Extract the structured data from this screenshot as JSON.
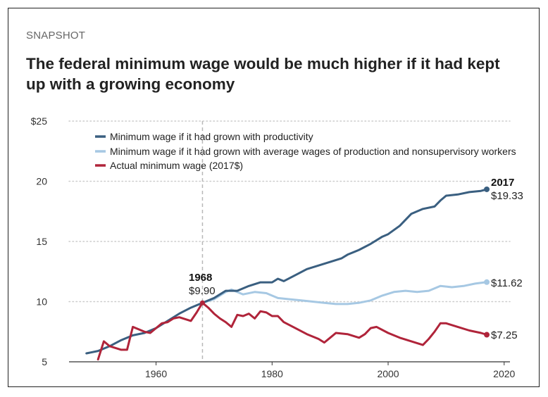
{
  "kicker": "SNAPSHOT",
  "title": "The federal minimum wage would be much higher if it had kept up with a growing economy",
  "colors": {
    "productivity": "#3a5f80",
    "avg_wages": "#a6c8e3",
    "actual": "#b0243a",
    "grid": "#cccccc",
    "marker_line": "#b8b8b8"
  },
  "chart_data": {
    "type": "line",
    "x_range": [
      1945,
      2021
    ],
    "ylim": [
      5,
      25
    ],
    "x_ticks": [
      1960,
      1980,
      2000,
      2020
    ],
    "x_tick_labels": [
      "1960",
      "1980",
      "2000",
      "2020"
    ],
    "y_ticks": [
      5,
      10,
      15,
      20,
      25
    ],
    "y_tick_labels": [
      "5",
      "10",
      "15",
      "20",
      "$25"
    ],
    "grid": "horizontal dotted",
    "legend_position": "top-left",
    "series": [
      {
        "name": "Minimum wage if it had grown with productivity",
        "color_key": "productivity",
        "x": [
          1948,
          1950,
          1952,
          1954,
          1956,
          1958,
          1960,
          1962,
          1964,
          1966,
          1968,
          1970,
          1972,
          1974,
          1976,
          1978,
          1980,
          1981,
          1982,
          1984,
          1986,
          1988,
          1990,
          1992,
          1993,
          1995,
          1997,
          1999,
          2000,
          2002,
          2004,
          2006,
          2008,
          2009,
          2010,
          2012,
          2014,
          2016,
          2017
        ],
        "y": [
          5.7,
          5.9,
          6.3,
          6.8,
          7.2,
          7.4,
          7.8,
          8.4,
          9.0,
          9.5,
          9.9,
          10.3,
          10.9,
          10.9,
          11.3,
          11.6,
          11.6,
          11.9,
          11.7,
          12.2,
          12.7,
          13.0,
          13.3,
          13.6,
          13.9,
          14.3,
          14.8,
          15.4,
          15.6,
          16.3,
          17.3,
          17.7,
          17.9,
          18.4,
          18.8,
          18.9,
          19.1,
          19.2,
          19.33
        ]
      },
      {
        "name": "Minimum wage if it had grown with average wages of production and nonsupervisory workers",
        "color_key": "avg_wages",
        "x": [
          1968,
          1970,
          1972,
          1973,
          1975,
          1977,
          1979,
          1981,
          1983,
          1985,
          1987,
          1989,
          1991,
          1993,
          1995,
          1997,
          1999,
          2001,
          2003,
          2005,
          2007,
          2009,
          2011,
          2013,
          2015,
          2017
        ],
        "y": [
          9.9,
          10.2,
          10.8,
          11.0,
          10.6,
          10.8,
          10.7,
          10.3,
          10.2,
          10.1,
          10.0,
          9.9,
          9.8,
          9.8,
          9.9,
          10.1,
          10.5,
          10.8,
          10.9,
          10.8,
          10.9,
          11.3,
          11.2,
          11.3,
          11.5,
          11.62
        ]
      },
      {
        "name": "Actual minimum wage (2017$)",
        "color_key": "actual",
        "x": [
          1950,
          1951,
          1952,
          1954,
          1955,
          1956,
          1958,
          1959,
          1961,
          1962,
          1963,
          1964,
          1966,
          1967,
          1968,
          1969,
          1970,
          1971,
          1972,
          1973,
          1974,
          1975,
          1976,
          1977,
          1978,
          1979,
          1980,
          1981,
          1982,
          1984,
          1986,
          1988,
          1989,
          1990,
          1991,
          1993,
          1995,
          1996,
          1997,
          1998,
          2000,
          2002,
          2004,
          2006,
          2007,
          2008,
          2009,
          2010,
          2012,
          2014,
          2016,
          2017
        ],
        "y": [
          5.2,
          6.7,
          6.3,
          6.0,
          6.0,
          7.9,
          7.5,
          7.4,
          8.2,
          8.3,
          8.6,
          8.7,
          8.4,
          9.1,
          9.9,
          9.5,
          9.0,
          8.6,
          8.3,
          7.9,
          8.9,
          8.8,
          9.0,
          8.6,
          9.2,
          9.1,
          8.8,
          8.8,
          8.3,
          7.8,
          7.3,
          6.9,
          6.6,
          7.0,
          7.4,
          7.3,
          7.0,
          7.3,
          7.8,
          7.9,
          7.4,
          7.0,
          6.7,
          6.4,
          6.9,
          7.5,
          8.2,
          8.2,
          7.9,
          7.6,
          7.4,
          7.25
        ]
      }
    ],
    "annotations": [
      {
        "year_label": "1968",
        "value_label": "$9.90",
        "x": 1968,
        "y": 9.9
      },
      {
        "year_label": "2017",
        "value_label": "$19.33",
        "x": 2017,
        "y": 19.33
      },
      {
        "value_label": "$11.62",
        "x": 2017,
        "y": 11.62
      },
      {
        "value_label": "$7.25",
        "x": 2017,
        "y": 7.25
      }
    ],
    "vertical_marker_x": 1968
  }
}
